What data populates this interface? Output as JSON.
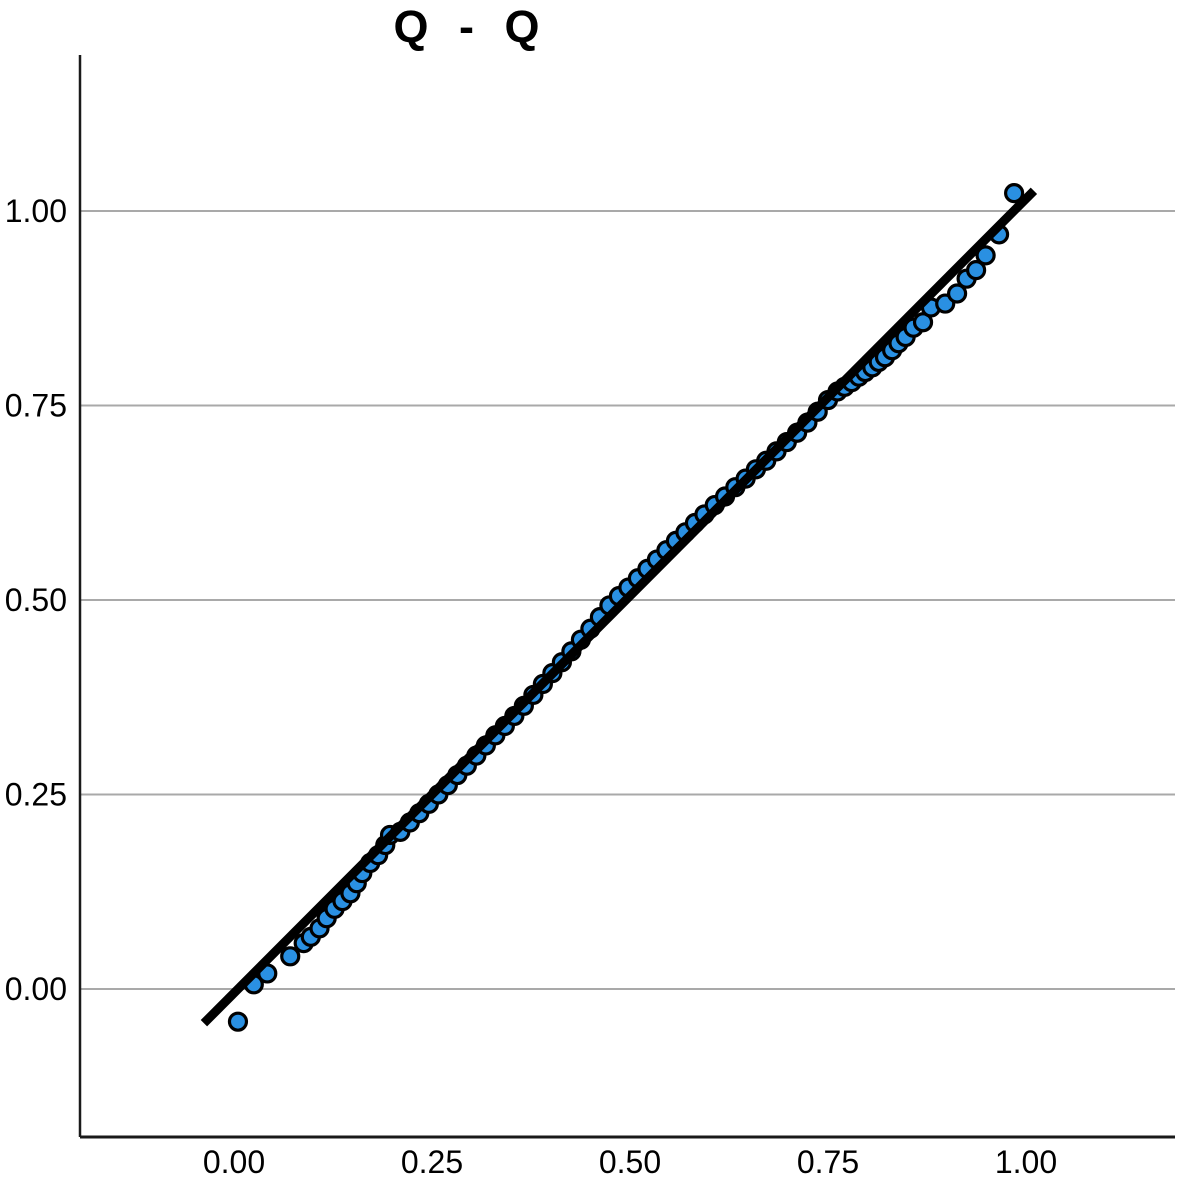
{
  "chart_data": {
    "type": "scatter",
    "title": "Q - Q",
    "x_tick_labels": [
      "0.00",
      "0.25",
      "0.50",
      "0.75",
      "1.00"
    ],
    "x_tick_values": [
      0,
      0.25,
      0.5,
      0.75,
      1
    ],
    "y_tick_labels": [
      "0.00",
      "0.25",
      "0.50",
      "0.75",
      "1.00"
    ],
    "y_tick_values": [
      0,
      0.25,
      0.5,
      0.75,
      1
    ],
    "x_range_shown": [
      -0.19,
      1.19
    ],
    "y_range_shown": [
      -0.19,
      1.2
    ],
    "grid": "horizontal-only",
    "legend": "none",
    "xlabel": "",
    "ylabel": "",
    "reference_line": {
      "x1": -0.038,
      "y1": -0.044,
      "x2": 1.01,
      "y2": 1.026
    },
    "colors": {
      "point_fill": "#2a90e2",
      "point_stroke": "#000000",
      "reference_line": "#000000",
      "grid": "#a9a9a9",
      "axis": "#1a1a1a",
      "background": "#ffffff",
      "text": "#000000"
    },
    "points": [
      [
        0.005,
        -0.042
      ],
      [
        0.025,
        0.006
      ],
      [
        0.042,
        0.02
      ],
      [
        0.071,
        0.042
      ],
      [
        0.088,
        0.059
      ],
      [
        0.097,
        0.067
      ],
      [
        0.108,
        0.078
      ],
      [
        0.117,
        0.091
      ],
      [
        0.127,
        0.103
      ],
      [
        0.137,
        0.113
      ],
      [
        0.147,
        0.123
      ],
      [
        0.155,
        0.136
      ],
      [
        0.162,
        0.149
      ],
      [
        0.172,
        0.162
      ],
      [
        0.182,
        0.172
      ],
      [
        0.191,
        0.185
      ],
      [
        0.197,
        0.198
      ],
      [
        0.21,
        0.202
      ],
      [
        0.222,
        0.214
      ],
      [
        0.234,
        0.226
      ],
      [
        0.246,
        0.238
      ],
      [
        0.258,
        0.25
      ],
      [
        0.27,
        0.262
      ],
      [
        0.282,
        0.275
      ],
      [
        0.294,
        0.287
      ],
      [
        0.306,
        0.3
      ],
      [
        0.318,
        0.313
      ],
      [
        0.33,
        0.326
      ],
      [
        0.342,
        0.338
      ],
      [
        0.354,
        0.351
      ],
      [
        0.366,
        0.364
      ],
      [
        0.378,
        0.378
      ],
      [
        0.39,
        0.392
      ],
      [
        0.402,
        0.406
      ],
      [
        0.414,
        0.42
      ],
      [
        0.426,
        0.434
      ],
      [
        0.438,
        0.449
      ],
      [
        0.45,
        0.463
      ],
      [
        0.462,
        0.478
      ],
      [
        0.474,
        0.493
      ],
      [
        0.486,
        0.505
      ],
      [
        0.498,
        0.516
      ],
      [
        0.51,
        0.528
      ],
      [
        0.522,
        0.54
      ],
      [
        0.534,
        0.552
      ],
      [
        0.546,
        0.564
      ],
      [
        0.558,
        0.576
      ],
      [
        0.57,
        0.587
      ],
      [
        0.582,
        0.599
      ],
      [
        0.594,
        0.61
      ],
      [
        0.607,
        0.622
      ],
      [
        0.62,
        0.633
      ],
      [
        0.633,
        0.645
      ],
      [
        0.646,
        0.656
      ],
      [
        0.659,
        0.668
      ],
      [
        0.672,
        0.679
      ],
      [
        0.685,
        0.691
      ],
      [
        0.698,
        0.703
      ],
      [
        0.711,
        0.715
      ],
      [
        0.724,
        0.728
      ],
      [
        0.737,
        0.742
      ],
      [
        0.75,
        0.757
      ],
      [
        0.762,
        0.768
      ],
      [
        0.771,
        0.774
      ],
      [
        0.78,
        0.78
      ],
      [
        0.789,
        0.787
      ],
      [
        0.797,
        0.793
      ],
      [
        0.806,
        0.799
      ],
      [
        0.814,
        0.806
      ],
      [
        0.822,
        0.812
      ],
      [
        0.831,
        0.821
      ],
      [
        0.839,
        0.83
      ],
      [
        0.848,
        0.838
      ],
      [
        0.858,
        0.85
      ],
      [
        0.87,
        0.857
      ],
      [
        0.88,
        0.876
      ],
      [
        0.898,
        0.881
      ],
      [
        0.913,
        0.894
      ],
      [
        0.925,
        0.913
      ],
      [
        0.937,
        0.924
      ],
      [
        0.949,
        0.943
      ],
      [
        0.966,
        0.97
      ],
      [
        0.985,
        1.023
      ]
    ],
    "marker": {
      "radius": 8.5,
      "stroke_width": 3.2
    },
    "reference_line_width": 9
  }
}
